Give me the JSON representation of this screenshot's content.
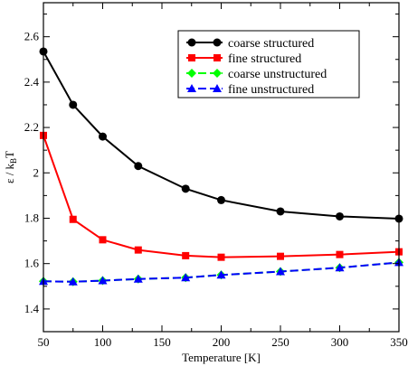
{
  "chart_data": {
    "type": "line",
    "title": "",
    "xlabel": "Temperature [K]",
    "ylabel_parts": {
      "base": "ε / k",
      "sub": "B",
      "tail": "T"
    },
    "xlim": [
      50,
      350
    ],
    "ylim": [
      1.3,
      2.75
    ],
    "xticks": [
      50,
      100,
      150,
      200,
      250,
      300,
      350
    ],
    "yticks": [
      1.4,
      1.6,
      1.8,
      2.0,
      2.2,
      2.4,
      2.6
    ],
    "ytick_labels": [
      "1.4",
      "1.6",
      "1.8",
      "2",
      "2.2",
      "2.4",
      "2.6"
    ],
    "legend_position": "top-right",
    "grid": false,
    "series": [
      {
        "name": "coarse structured",
        "color": "#000000",
        "marker": "circle",
        "dash": "solid",
        "points": [
          [
            50,
            2.535
          ],
          [
            75,
            2.3
          ],
          [
            100,
            2.16
          ],
          [
            130,
            2.03
          ],
          [
            170,
            1.93
          ],
          [
            200,
            1.88
          ],
          [
            250,
            1.83
          ],
          [
            300,
            1.808
          ],
          [
            350,
            1.798
          ]
        ]
      },
      {
        "name": "fine structured",
        "color": "#ff0000",
        "marker": "square",
        "dash": "solid",
        "points": [
          [
            50,
            2.165
          ],
          [
            75,
            1.795
          ],
          [
            100,
            1.705
          ],
          [
            130,
            1.66
          ],
          [
            170,
            1.635
          ],
          [
            200,
            1.628
          ],
          [
            250,
            1.632
          ],
          [
            300,
            1.64
          ],
          [
            350,
            1.652
          ]
        ]
      },
      {
        "name": "coarse unstructured",
        "color": "#00ff00",
        "marker": "diamond",
        "dash": "dashed",
        "points": [
          [
            50,
            1.522
          ],
          [
            75,
            1.52
          ],
          [
            100,
            1.525
          ],
          [
            130,
            1.532
          ],
          [
            170,
            1.538
          ],
          [
            200,
            1.55
          ],
          [
            250,
            1.565
          ],
          [
            300,
            1.582
          ],
          [
            350,
            1.605
          ]
        ]
      },
      {
        "name": "fine unstructured",
        "color": "#0000ff",
        "marker": "triangle",
        "dash": "dashed",
        "points": [
          [
            50,
            1.522
          ],
          [
            75,
            1.52
          ],
          [
            100,
            1.525
          ],
          [
            130,
            1.532
          ],
          [
            170,
            1.538
          ],
          [
            200,
            1.55
          ],
          [
            250,
            1.565
          ],
          [
            300,
            1.582
          ],
          [
            350,
            1.605
          ]
        ]
      }
    ]
  }
}
